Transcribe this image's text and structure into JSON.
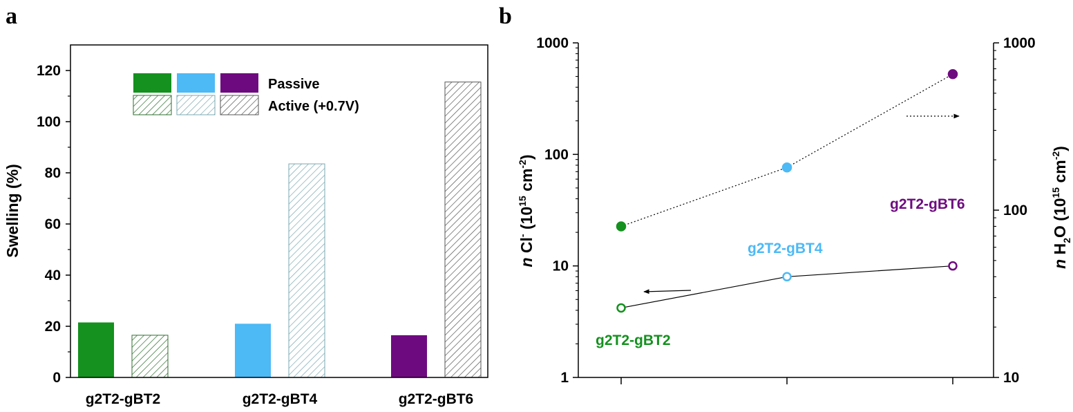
{
  "panels": {
    "a": "a",
    "b": "b"
  },
  "chart_data": [
    {
      "type": "bar",
      "panel": "a",
      "ylabel": "Swelling (%)",
      "ylim": [
        0,
        130
      ],
      "yticks": [
        0,
        20,
        40,
        60,
        80,
        100,
        120
      ],
      "categories": [
        "g2T2-gBT2",
        "g2T2-gBT4",
        "g2T2-gBT6"
      ],
      "category_colors": [
        "#14911e",
        "#4db9f5",
        "#6e0a80"
      ],
      "series": [
        {
          "name": "Passive",
          "style": "solid",
          "values": [
            21.5,
            21,
            16.5
          ]
        },
        {
          "name": "Active (+0.7V)",
          "style": "hatched",
          "values": [
            16.5,
            83.5,
            115.5
          ]
        }
      ],
      "legend": {
        "position": "top-center",
        "entries": [
          "Passive",
          "Active (+0.7V)"
        ]
      },
      "grid": false
    },
    {
      "type": "scatter",
      "panel": "b",
      "scale": "log",
      "ylabel_left": {
        "italic": "n",
        "main": " Cl",
        "sup": "-",
        "unit_pre": " (10",
        "unit_sup": "15",
        "unit_mid": " cm",
        "unit_sup2": "-2",
        "unit_post": ")"
      },
      "ylabel_right": {
        "italic": "n",
        "main": " H",
        "sub": "2",
        "main2": "O (10",
        "unit_sup": "15",
        "unit_mid": " cm",
        "unit_sup2": "-2",
        "unit_post": ")"
      },
      "ylim_left": [
        1,
        1000
      ],
      "ylim_right": [
        10,
        1000
      ],
      "yticks_left": [
        "1",
        "10",
        "100",
        "1000"
      ],
      "yticks_right": [
        "10",
        "100",
        "1000"
      ],
      "x": [
        1,
        2,
        3
      ],
      "colors": [
        "#14911e",
        "#4db9f5",
        "#6e0a80"
      ],
      "series": [
        {
          "axis": "right",
          "marker": "filled",
          "line": "dotted",
          "values": [
            80,
            180,
            650
          ]
        },
        {
          "axis": "left",
          "marker": "open",
          "line": "solid",
          "values": [
            4.2,
            8,
            10
          ]
        }
      ],
      "point_labels": [
        "g2T2-gBT2",
        "g2T2-gBT4",
        "g2T2-gBT6"
      ],
      "grid": false
    }
  ]
}
